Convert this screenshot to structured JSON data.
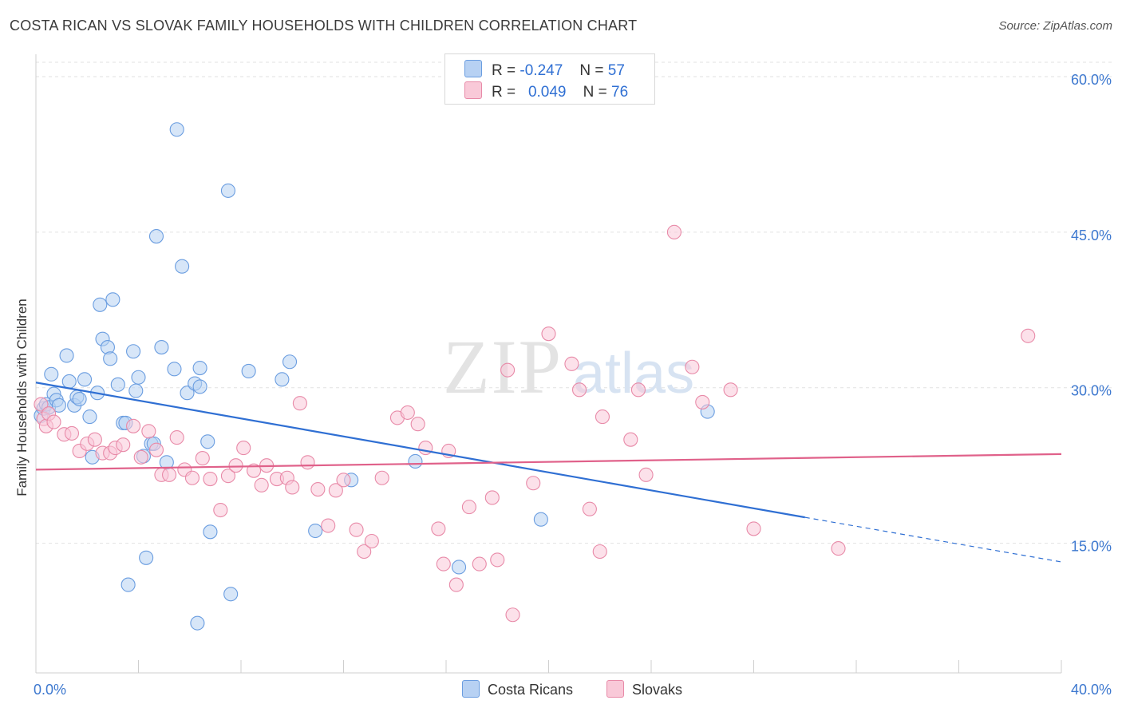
{
  "title": "COSTA RICAN VS SLOVAK FAMILY HOUSEHOLDS WITH CHILDREN CORRELATION CHART",
  "source": "Source: ZipAtlas.com",
  "watermark": {
    "zip": "ZIP",
    "atlas": "atlas"
  },
  "legend_top": [
    {
      "r_label": "R =",
      "r_value": "-0.247",
      "n_label": "N =",
      "n_value": "57",
      "color": "#a9c8f2",
      "border": "#6a9de0"
    },
    {
      "r_label": "R =",
      "r_value": "0.049",
      "n_label": "N =",
      "n_value": "76",
      "color": "#f7bdd0",
      "border": "#e88aa8"
    }
  ],
  "legend_bottom": [
    {
      "label": "Costa Ricans",
      "color": "#a9c8f2",
      "border": "#6a9de0"
    },
    {
      "label": "Slovaks",
      "color": "#f7bdd0",
      "border": "#e88aa8"
    }
  ],
  "chart_data": {
    "type": "scatter",
    "title": "COSTA RICAN VS SLOVAK FAMILY HOUSEHOLDS WITH CHILDREN CORRELATION CHART",
    "xlabel": "",
    "ylabel": "Family Households with Children",
    "xlim": [
      0,
      40
    ],
    "ylim": [
      2.5,
      62
    ],
    "x_tick_labels": [
      {
        "value": 0,
        "label": "0.0%"
      },
      {
        "value": 40,
        "label": "40.0%"
      }
    ],
    "y_tick_labels": [
      {
        "value": 15,
        "label": "15.0%"
      },
      {
        "value": 30,
        "label": "30.0%"
      },
      {
        "value": 45,
        "label": "45.0%"
      },
      {
        "value": 60,
        "label": "60.0%"
      }
    ],
    "grid": true,
    "series": [
      {
        "name": "Costa Ricans",
        "color": "#6a9de0",
        "fill": "#b7d1f3",
        "trend": {
          "x0": 0,
          "y0": 30.5,
          "x1": 30.0,
          "y1": 17.5,
          "dash_to_x": 40.0,
          "dash_to_y": 13.2,
          "color": "#2f6fd3"
        },
        "points": [
          [
            0.2,
            27.3
          ],
          [
            0.3,
            28.0
          ],
          [
            0.4,
            28.4
          ],
          [
            0.5,
            28.1
          ],
          [
            0.6,
            31.3
          ],
          [
            0.7,
            29.4
          ],
          [
            0.8,
            28.8
          ],
          [
            0.9,
            28.3
          ],
          [
            1.2,
            33.1
          ],
          [
            1.3,
            30.6
          ],
          [
            1.5,
            28.3
          ],
          [
            1.6,
            29.1
          ],
          [
            1.7,
            28.9
          ],
          [
            1.9,
            30.8
          ],
          [
            2.1,
            27.2
          ],
          [
            2.2,
            23.3
          ],
          [
            2.4,
            29.5
          ],
          [
            2.5,
            38.0
          ],
          [
            2.6,
            34.7
          ],
          [
            2.8,
            33.9
          ],
          [
            2.9,
            32.8
          ],
          [
            3.0,
            38.5
          ],
          [
            3.2,
            30.3
          ],
          [
            3.4,
            26.6
          ],
          [
            3.5,
            26.6
          ],
          [
            3.6,
            11.0
          ],
          [
            3.8,
            33.5
          ],
          [
            3.9,
            29.7
          ],
          [
            4.0,
            31.0
          ],
          [
            4.2,
            23.4
          ],
          [
            4.3,
            13.6
          ],
          [
            4.5,
            24.6
          ],
          [
            4.6,
            24.6
          ],
          [
            4.7,
            44.6
          ],
          [
            4.9,
            33.9
          ],
          [
            5.1,
            22.8
          ],
          [
            5.4,
            31.8
          ],
          [
            5.5,
            54.9
          ],
          [
            5.7,
            41.7
          ],
          [
            5.9,
            29.5
          ],
          [
            6.2,
            30.4
          ],
          [
            6.3,
            7.3
          ],
          [
            6.4,
            31.9
          ],
          [
            6.7,
            24.8
          ],
          [
            6.8,
            16.1
          ],
          [
            7.5,
            49.0
          ],
          [
            7.6,
            10.1
          ],
          [
            8.3,
            31.6
          ],
          [
            9.6,
            30.8
          ],
          [
            9.9,
            32.5
          ],
          [
            10.9,
            16.2
          ],
          [
            12.3,
            21.1
          ],
          [
            14.8,
            22.9
          ],
          [
            16.5,
            12.7
          ],
          [
            19.7,
            17.3
          ],
          [
            26.2,
            27.7
          ],
          [
            6.4,
            30.1
          ]
        ]
      },
      {
        "name": "Slovaks",
        "color": "#e88aa8",
        "fill": "#f9c9d8",
        "trend": {
          "x0": 0,
          "y0": 22.1,
          "x1": 40.0,
          "y1": 23.6,
          "color": "#e0618a"
        },
        "points": [
          [
            0.2,
            28.4
          ],
          [
            0.3,
            27.0
          ],
          [
            0.4,
            26.3
          ],
          [
            0.5,
            27.5
          ],
          [
            0.7,
            26.7
          ],
          [
            1.1,
            25.5
          ],
          [
            1.4,
            25.6
          ],
          [
            1.7,
            23.9
          ],
          [
            2.0,
            24.6
          ],
          [
            2.3,
            25.0
          ],
          [
            2.6,
            23.7
          ],
          [
            2.9,
            23.7
          ],
          [
            3.1,
            24.2
          ],
          [
            3.4,
            24.5
          ],
          [
            3.8,
            26.3
          ],
          [
            4.1,
            23.3
          ],
          [
            4.4,
            25.8
          ],
          [
            4.7,
            24.0
          ],
          [
            4.9,
            21.6
          ],
          [
            5.2,
            21.6
          ],
          [
            5.5,
            25.2
          ],
          [
            5.8,
            22.1
          ],
          [
            6.1,
            21.3
          ],
          [
            6.5,
            23.2
          ],
          [
            6.8,
            21.2
          ],
          [
            7.2,
            18.2
          ],
          [
            7.5,
            21.5
          ],
          [
            7.8,
            22.5
          ],
          [
            8.1,
            24.2
          ],
          [
            8.5,
            22.0
          ],
          [
            8.8,
            20.6
          ],
          [
            9.0,
            22.5
          ],
          [
            9.4,
            21.2
          ],
          [
            9.8,
            21.3
          ],
          [
            10.0,
            20.4
          ],
          [
            10.3,
            28.5
          ],
          [
            10.6,
            22.8
          ],
          [
            11.0,
            20.2
          ],
          [
            11.4,
            16.7
          ],
          [
            11.7,
            20.1
          ],
          [
            12.0,
            21.1
          ],
          [
            12.5,
            16.3
          ],
          [
            12.8,
            14.2
          ],
          [
            13.1,
            15.2
          ],
          [
            13.5,
            21.3
          ],
          [
            14.1,
            27.1
          ],
          [
            14.5,
            27.6
          ],
          [
            14.9,
            26.5
          ],
          [
            15.2,
            24.2
          ],
          [
            15.7,
            16.4
          ],
          [
            15.9,
            13.0
          ],
          [
            16.1,
            23.9
          ],
          [
            16.4,
            11.0
          ],
          [
            16.9,
            18.5
          ],
          [
            17.3,
            13.0
          ],
          [
            17.8,
            19.4
          ],
          [
            18.0,
            13.4
          ],
          [
            18.4,
            31.7
          ],
          [
            18.6,
            8.1
          ],
          [
            19.4,
            20.8
          ],
          [
            20.0,
            35.2
          ],
          [
            20.9,
            32.3
          ],
          [
            21.2,
            29.8
          ],
          [
            21.6,
            18.3
          ],
          [
            22.0,
            14.2
          ],
          [
            22.1,
            27.2
          ],
          [
            23.2,
            25.0
          ],
          [
            23.5,
            29.8
          ],
          [
            23.8,
            21.6
          ],
          [
            24.9,
            45.0
          ],
          [
            25.6,
            32.0
          ],
          [
            26.0,
            28.6
          ],
          [
            27.1,
            29.8
          ],
          [
            28.0,
            16.4
          ],
          [
            31.3,
            14.5
          ],
          [
            38.7,
            35.0
          ]
        ]
      }
    ]
  }
}
